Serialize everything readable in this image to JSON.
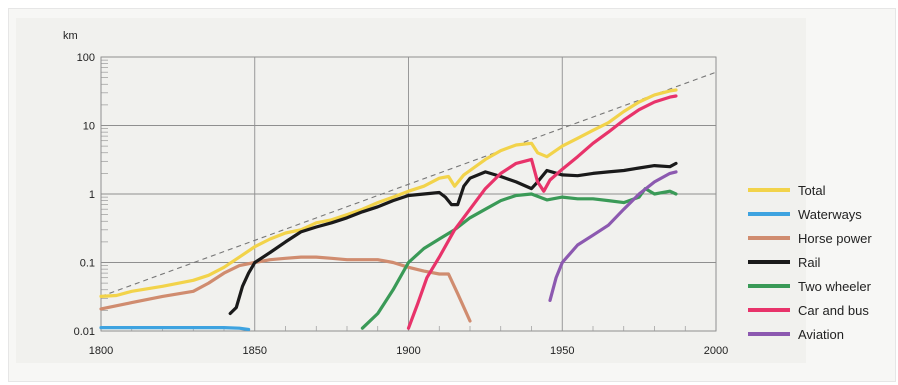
{
  "chart_data": {
    "type": "line",
    "title": "",
    "xlabel": "",
    "ylabel": "km",
    "yscale": "log",
    "xlim": [
      1800,
      2000
    ],
    "ylim": [
      0.01,
      100
    ],
    "x_ticks": [
      "1800",
      "1850",
      "1900",
      "1950",
      "2000"
    ],
    "y_ticks": [
      "0.01",
      "0.1",
      "1",
      "10",
      "100"
    ],
    "grid": true,
    "legend_position": "right",
    "trend_line": {
      "style": "dashed",
      "x": [
        1800,
        2000
      ],
      "y": [
        0.032,
        60
      ]
    },
    "series": [
      {
        "name": "Total",
        "color": "#f2d34a",
        "x": [
          1800,
          1805,
          1810,
          1820,
          1830,
          1835,
          1840,
          1845,
          1850,
          1855,
          1860,
          1865,
          1870,
          1875,
          1880,
          1885,
          1890,
          1895,
          1900,
          1905,
          1910,
          1913,
          1915,
          1918,
          1920,
          1925,
          1930,
          1935,
          1940,
          1942,
          1945,
          1950,
          1955,
          1960,
          1965,
          1970,
          1975,
          1980,
          1985,
          1987
        ],
        "y": [
          0.032,
          0.033,
          0.038,
          0.045,
          0.055,
          0.065,
          0.085,
          0.12,
          0.17,
          0.22,
          0.27,
          0.3,
          0.38,
          0.42,
          0.5,
          0.6,
          0.75,
          0.9,
          1.1,
          1.3,
          1.7,
          1.8,
          1.3,
          1.9,
          2.2,
          3.2,
          4.3,
          5.2,
          5.5,
          4.0,
          3.5,
          5.0,
          6.5,
          8.5,
          11,
          16,
          22,
          28,
          32,
          33
        ]
      },
      {
        "name": "Waterways",
        "color": "#3ea3e0",
        "x": [
          1800,
          1810,
          1820,
          1830,
          1840,
          1845,
          1848
        ],
        "y": [
          0.0112,
          0.0112,
          0.0112,
          0.0112,
          0.0112,
          0.011,
          0.0105
        ]
      },
      {
        "name": "Horse power",
        "color": "#d08c6f",
        "x": [
          1800,
          1810,
          1820,
          1830,
          1835,
          1840,
          1845,
          1850,
          1855,
          1860,
          1865,
          1870,
          1875,
          1880,
          1885,
          1890,
          1895,
          1900,
          1905,
          1910,
          1913,
          1916,
          1920
        ],
        "y": [
          0.021,
          0.026,
          0.032,
          0.038,
          0.05,
          0.07,
          0.09,
          0.1,
          0.11,
          0.115,
          0.12,
          0.12,
          0.115,
          0.11,
          0.11,
          0.11,
          0.1,
          0.085,
          0.075,
          0.068,
          0.068,
          0.035,
          0.014
        ]
      },
      {
        "name": "Rail",
        "color": "#1a1a1a",
        "x": [
          1842,
          1844,
          1846,
          1848,
          1850,
          1855,
          1860,
          1865,
          1870,
          1875,
          1880,
          1885,
          1890,
          1895,
          1900,
          1905,
          1910,
          1912,
          1914,
          1916,
          1918,
          1920,
          1925,
          1930,
          1935,
          1940,
          1942,
          1945,
          1950,
          1955,
          1960,
          1965,
          1970,
          1975,
          1980,
          1985,
          1987
        ],
        "y": [
          0.018,
          0.022,
          0.045,
          0.07,
          0.1,
          0.14,
          0.2,
          0.28,
          0.33,
          0.38,
          0.45,
          0.55,
          0.65,
          0.8,
          0.95,
          1.0,
          1.05,
          0.9,
          0.7,
          0.7,
          1.3,
          1.7,
          2.1,
          1.8,
          1.5,
          1.2,
          1.5,
          2.2,
          1.9,
          1.85,
          2.0,
          2.1,
          2.2,
          2.4,
          2.6,
          2.5,
          2.8
        ]
      },
      {
        "name": "Two wheeler",
        "color": "#3a9a57",
        "x": [
          1885,
          1890,
          1895,
          1900,
          1905,
          1910,
          1915,
          1920,
          1925,
          1930,
          1935,
          1940,
          1945,
          1950,
          1955,
          1960,
          1965,
          1970,
          1975,
          1977,
          1980,
          1985,
          1987
        ],
        "y": [
          0.011,
          0.018,
          0.04,
          0.1,
          0.16,
          0.22,
          0.3,
          0.45,
          0.6,
          0.8,
          0.95,
          1.0,
          0.82,
          0.9,
          0.85,
          0.85,
          0.8,
          0.75,
          0.9,
          1.2,
          1.0,
          1.1,
          1.0
        ]
      },
      {
        "name": "Car and bus",
        "color": "#e8336a",
        "x": [
          1900,
          1903,
          1906,
          1910,
          1915,
          1920,
          1925,
          1930,
          1935,
          1940,
          1942,
          1944,
          1946,
          1950,
          1955,
          1960,
          1965,
          1970,
          1975,
          1980,
          1985,
          1987
        ],
        "y": [
          0.011,
          0.025,
          0.06,
          0.12,
          0.3,
          0.6,
          1.2,
          2.0,
          2.8,
          3.2,
          1.5,
          1.1,
          1.6,
          2.3,
          3.5,
          5.5,
          8,
          12,
          17,
          22,
          26,
          27
        ]
      },
      {
        "name": "Aviation",
        "color": "#8c59b0",
        "x": [
          1946,
          1948,
          1950,
          1955,
          1960,
          1965,
          1970,
          1975,
          1980,
          1985,
          1987
        ],
        "y": [
          0.028,
          0.06,
          0.1,
          0.18,
          0.25,
          0.35,
          0.6,
          1.0,
          1.5,
          2.0,
          2.1
        ]
      }
    ]
  }
}
